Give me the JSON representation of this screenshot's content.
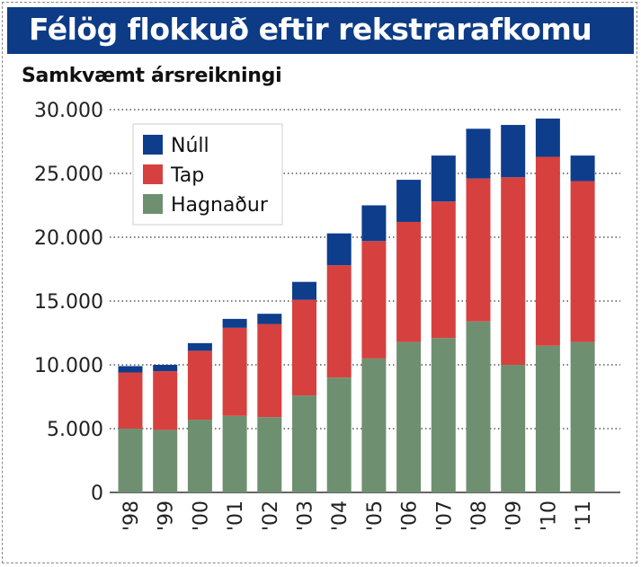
{
  "title": "Félög flokkuð eftir rekstrarafkomu",
  "subtitle": "Samkvæmt ársreikningi",
  "colors": {
    "title_bar": "#0d3b86",
    "nuall": "#0e3d8c",
    "tap": "#d6413f",
    "hagnadur": "#6f9070"
  },
  "chart_data": {
    "type": "bar",
    "stacked": true,
    "categories": [
      "'98",
      "'99",
      "'00",
      "'01",
      "'02",
      "'03",
      "'04",
      "'05",
      "'06",
      "'07",
      "'08",
      "'09",
      "'10",
      "'11"
    ],
    "series": [
      {
        "name": "Hagnaður",
        "color": "#6f9070",
        "values": [
          5000,
          4900,
          5700,
          6000,
          5900,
          7600,
          9000,
          10500,
          11800,
          12100,
          13400,
          10000,
          11500,
          11800
        ]
      },
      {
        "name": "Tap",
        "color": "#d6413f",
        "values": [
          4400,
          4600,
          5400,
          6900,
          7300,
          7500,
          8800,
          9200,
          9400,
          10700,
          11200,
          14700,
          14800,
          12600
        ]
      },
      {
        "name": "Núll",
        "color": "#0e3d8c",
        "values": [
          500,
          500,
          600,
          700,
          800,
          1400,
          2500,
          2800,
          3300,
          3600,
          3900,
          4100,
          3000,
          2000
        ]
      }
    ],
    "yticks": [
      "0",
      "5.000",
      "10.000",
      "15.000",
      "20.000",
      "25.000",
      "30.000"
    ],
    "ylim": [
      0,
      30000
    ],
    "grid": "horizontal dotted",
    "legend": {
      "position": "top-left",
      "items": [
        "Núll",
        "Tap",
        "Hagnaður"
      ]
    }
  }
}
